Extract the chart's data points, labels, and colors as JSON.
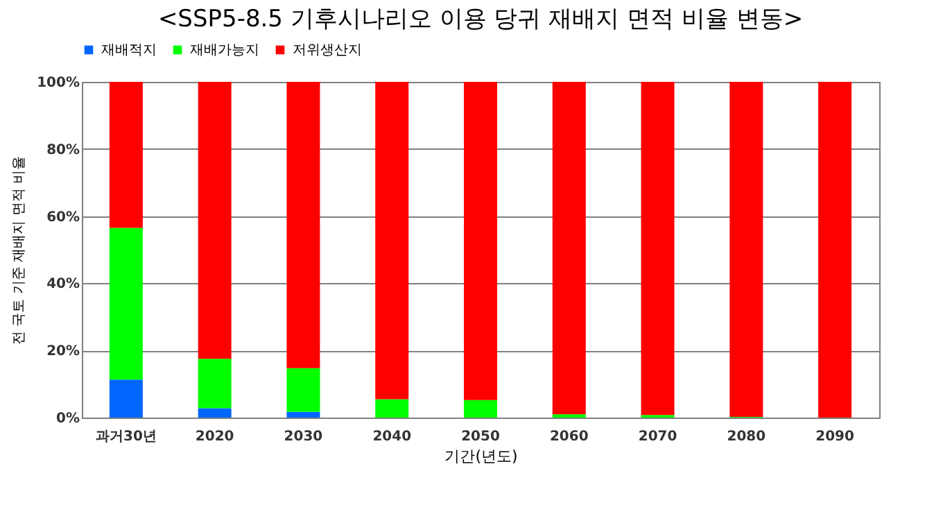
{
  "chart_data": {
    "type": "bar",
    "title": "<SSP5-8.5 기후시나리오 이용 당귀 재배지 면적 비율 변동>",
    "xlabel": "기간(년도)",
    "ylabel": "전 국토 기준 재배지 면적 비율",
    "categories": [
      "과거30년",
      "2020",
      "2030",
      "2040",
      "2050",
      "2060",
      "2070",
      "2080",
      "2090"
    ],
    "stacked": true,
    "series": [
      {
        "name": "재배적지",
        "color": "#0066ff",
        "values": [
          11.3,
          2.8,
          1.7,
          0,
          0,
          0,
          0,
          0,
          0
        ]
      },
      {
        "name": "재배가능지",
        "color": "#00ff00",
        "values": [
          45.2,
          14.7,
          13,
          5.5,
          5.2,
          1,
          0.8,
          0.2,
          0
        ]
      },
      {
        "name": "저위생산지",
        "color": "#ff0000",
        "values": [
          43.5,
          82.5,
          85.3,
          94.5,
          94.8,
          99,
          99.2,
          99.8,
          100
        ]
      }
    ],
    "ylim": [
      0,
      100
    ],
    "yticks": [
      {
        "value": 0,
        "label": "0%"
      },
      {
        "value": 20,
        "label": "20%"
      },
      {
        "value": 40,
        "label": "40%"
      },
      {
        "value": 60,
        "label": "60%"
      },
      {
        "value": 80,
        "label": "80%"
      },
      {
        "value": 100,
        "label": "100%"
      }
    ],
    "grid": "y",
    "legend": "top"
  }
}
